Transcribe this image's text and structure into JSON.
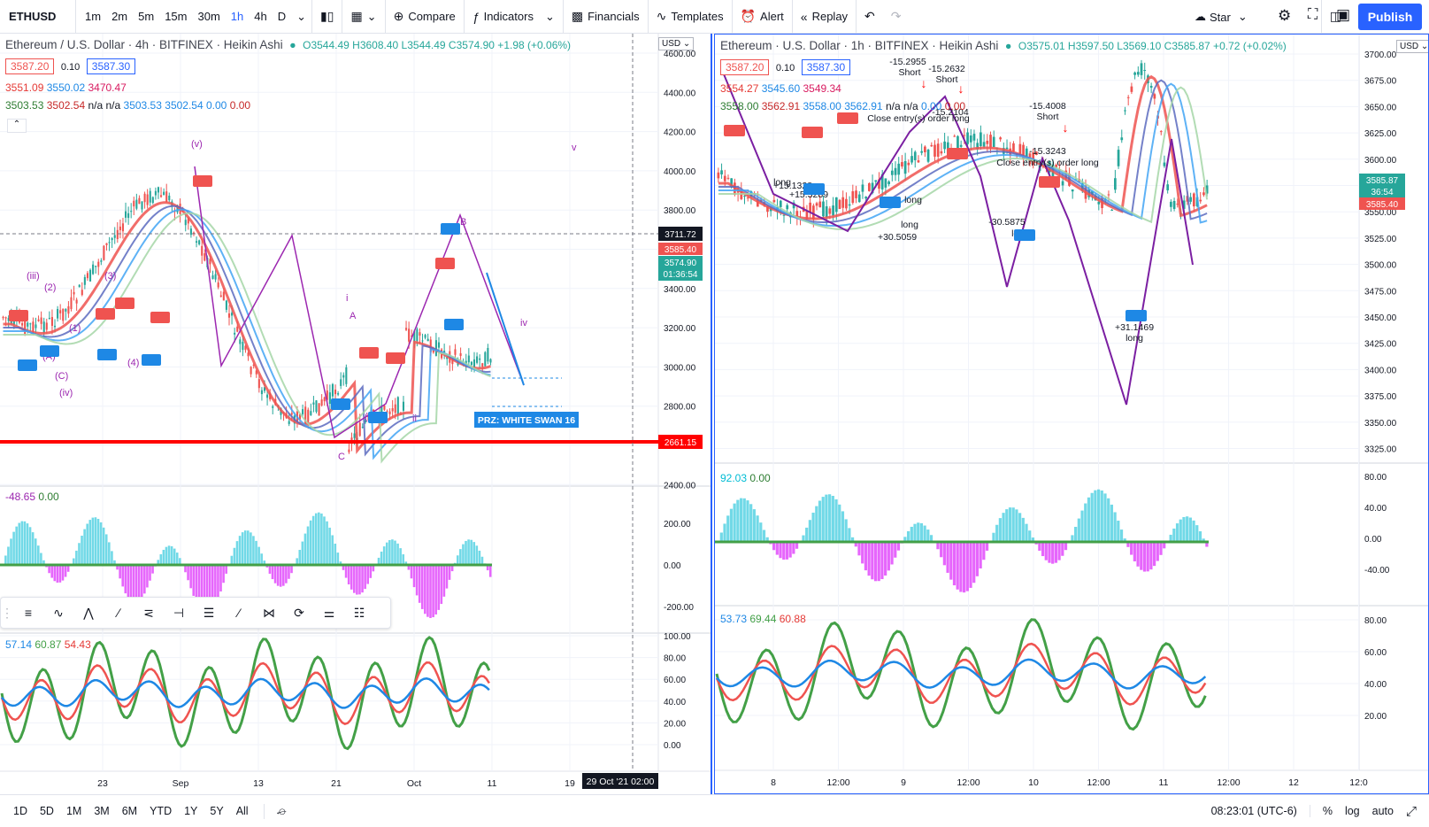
{
  "toolbar": {
    "symbol": "ETHUSD",
    "timeframes": [
      "1m",
      "2m",
      "5m",
      "15m",
      "30m",
      "1h",
      "4h",
      "D"
    ],
    "active_timeframe": "1h",
    "compare_label": "Compare",
    "indicators_label": "Indicators",
    "financials_label": "Financials",
    "templates_label": "Templates",
    "alert_label": "Alert",
    "replay_label": "Replay",
    "star_label": "Star",
    "publish_label": "Publish"
  },
  "left_chart": {
    "title": "Ethereum / U.S. Dollar · 4h · BITFINEX · Heikin Ashi",
    "ohlc": "O3544.49 H3608.40 L3544.49 C3574.90 +1.98 (+0.06%)",
    "sell_price": "3587.20",
    "spread": "0.10",
    "buy_price": "3587.30",
    "line3": [
      "3551.09",
      "3550.02",
      "3470.47"
    ],
    "line4": [
      "3503.53",
      "3502.54",
      "n/a",
      "n/a",
      "3503.53",
      "3502.54",
      "0.00",
      "0.00"
    ],
    "currency": "USD",
    "price_ticks": [
      "4600.00",
      "4400.00",
      "4200.00",
      "4000.00",
      "3800.00",
      "3600.00",
      "3400.00",
      "3200.00",
      "3000.00",
      "2800.00",
      "2600.00",
      "2400.00"
    ],
    "price_labels": {
      "crosshair": "3711.72",
      "red": "3585.40",
      "green": "3574.90",
      "countdown": "01:36:54",
      "support": "2661.15"
    },
    "time_ticks": [
      "23",
      "Sep",
      "13",
      "21",
      "Oct",
      "11",
      "19"
    ],
    "time_highlight": "29 Oct '21   02:00",
    "prz_label": "PRZ: WHITE SWAN 16",
    "wave_labels": [
      "(v)",
      "(iii)",
      "(iv)",
      "B",
      "A",
      "C",
      "i",
      "ii",
      "iv",
      "v",
      "(A)",
      "(C)",
      "(B)",
      "(4)",
      "(3)",
      "(1)",
      "(2)"
    ],
    "osc_legend": [
      "-48.65",
      "0.00"
    ],
    "osc_ticks": [
      "200.00",
      "0.00",
      "-200.00"
    ],
    "rsi_legend": [
      "57.14",
      "60.87",
      "54.43"
    ],
    "rsi_ticks": [
      "100.00",
      "80.00",
      "60.00",
      "40.00",
      "20.00",
      "0.00"
    ]
  },
  "right_chart": {
    "title": "Ethereum · U.S. Dollar · 1h · BITFINEX · Heikin Ashi",
    "ohlc": "O3575.01 H3597.50 L3569.10 C3585.87 +0.72 (+0.02%)",
    "sell_price": "3587.20",
    "spread": "0.10",
    "buy_price": "3587.30",
    "line3": [
      "3554.27",
      "3545.60",
      "3549.34"
    ],
    "line4": [
      "3558.00",
      "3562.91",
      "3558.00",
      "3562.91",
      "n/a",
      "n/a",
      "0.00",
      "0.00"
    ],
    "currency": "USD",
    "price_ticks": [
      "3700.00",
      "3675.00",
      "3650.00",
      "3625.00",
      "3600.00",
      "3575.00",
      "3550.00",
      "3525.00",
      "3500.00",
      "3475.00",
      "3450.00",
      "3425.00",
      "3400.00",
      "3375.00",
      "3350.00",
      "3325.00"
    ],
    "price_labels": {
      "green": "3585.87",
      "countdown": "36:54",
      "red": "3585.40"
    },
    "time_ticks": [
      "8",
      "12:00",
      "9",
      "12:00",
      "10",
      "12:00",
      "11",
      "12:00",
      "12",
      "12:0"
    ],
    "annotations": [
      "-15.2955",
      "Short",
      "-15.2632",
      "Short",
      "-15.4008",
      "Short",
      "-15.3243",
      "Close entry(s) order long",
      "Close entry(s) order long",
      "long",
      "+15.3289",
      "long",
      "+30.5059",
      "long",
      "-30.5875",
      "long",
      "+31.1469",
      "long",
      "+15.1328",
      "-15.2104"
    ],
    "osc_legend": [
      "92.03",
      "0.00"
    ],
    "osc_ticks": [
      "80.00",
      "40.00",
      "0.00",
      "-40.00"
    ],
    "rsi_legend": [
      "53.73",
      "69.44",
      "60.88"
    ],
    "rsi_ticks": [
      "80.00",
      "60.00",
      "40.00",
      "20.00"
    ]
  },
  "bottombar": {
    "ranges": [
      "1D",
      "5D",
      "1M",
      "3M",
      "6M",
      "YTD",
      "1Y",
      "5Y",
      "All"
    ],
    "clock": "08:23:01 (UTC-6)",
    "percent": "%",
    "log": "log",
    "auto": "auto"
  },
  "colors": {
    "accent": "#2962ff",
    "up": "#26a69a",
    "down": "#ef5350",
    "support": "#ff0000",
    "wave": "#9c27b0"
  }
}
